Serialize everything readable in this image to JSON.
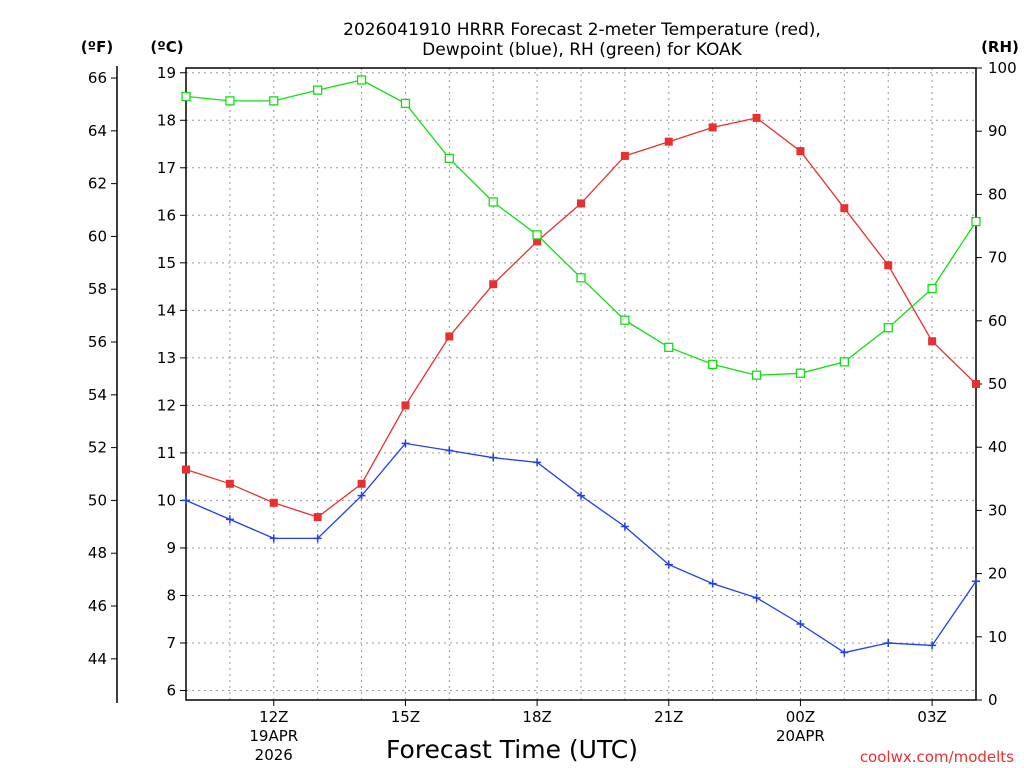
{
  "chart_data": {
    "type": "line",
    "title_lines": [
      "2026041910 HRRR Forecast 2-meter Temperature (red),",
      "Dewpoint (blue), RH (green) for KOAK"
    ],
    "xlabel": "Forecast Time (UTC)",
    "credit": "coolwx.com/modelts",
    "units": {
      "fahrenheit": "(ºF)",
      "celsius": "(ºC)",
      "rh": "(RH)"
    },
    "colors": {
      "temperature": "#e83030",
      "dewpoint": "#2040e8",
      "rh": "#10e010",
      "grid": "#999999",
      "axis": "#000000",
      "credit": "#e83030"
    },
    "x": {
      "range": [
        10,
        28
      ],
      "ticks": [
        12,
        15,
        18,
        21,
        24,
        27
      ],
      "tick_labels": [
        "12Z",
        "15Z",
        "18Z",
        "21Z",
        "00Z",
        "03Z"
      ]
    },
    "date_labels": [
      {
        "x": 12,
        "lines": [
          "19APR",
          "2026"
        ]
      },
      {
        "x": 24,
        "lines": [
          "20APR"
        ]
      }
    ],
    "axes": {
      "celsius": {
        "range": [
          5.8,
          19.1
        ],
        "ticks": [
          6,
          7,
          8,
          9,
          10,
          11,
          12,
          13,
          14,
          15,
          16,
          17,
          18,
          19
        ]
      },
      "fahrenheit": {
        "range": [
          42.44,
          66.38
        ],
        "ticks": [
          44,
          46,
          48,
          50,
          52,
          54,
          56,
          58,
          60,
          62,
          64,
          66
        ]
      },
      "rh": {
        "range": [
          0,
          100
        ],
        "ticks": [
          0,
          10,
          20,
          30,
          40,
          50,
          60,
          70,
          80,
          90,
          100
        ]
      }
    },
    "series": [
      {
        "name": "Temperature",
        "unit": "C",
        "axis": "celsius",
        "marker": "filled-square",
        "color_key": "temperature",
        "x": [
          10,
          11,
          12,
          13,
          14,
          15,
          16,
          17,
          18,
          19,
          20,
          21,
          22,
          23,
          24,
          25,
          26,
          27,
          28
        ],
        "values": [
          10.65,
          10.35,
          9.95,
          9.65,
          10.35,
          12.0,
          13.45,
          14.55,
          15.45,
          16.25,
          17.25,
          17.55,
          17.85,
          18.05,
          17.35,
          16.15,
          14.95,
          13.35,
          12.45
        ]
      },
      {
        "name": "Dewpoint",
        "unit": "C",
        "axis": "celsius",
        "marker": "plus",
        "color_key": "dewpoint",
        "x": [
          10,
          11,
          12,
          13,
          14,
          15,
          16,
          17,
          18,
          19,
          20,
          21,
          22,
          23,
          24,
          25,
          26,
          27,
          28
        ],
        "values": [
          10.0,
          9.6,
          9.2,
          9.2,
          10.1,
          11.2,
          11.05,
          10.9,
          10.8,
          10.1,
          9.45,
          8.65,
          8.25,
          7.95,
          7.4,
          6.8,
          7.0,
          6.95,
          8.3
        ]
      },
      {
        "name": "RH",
        "unit": "%",
        "axis": "rh",
        "marker": "open-square",
        "color_key": "rh",
        "x": [
          10,
          11,
          12,
          13,
          14,
          15,
          16,
          17,
          18,
          19,
          20,
          21,
          22,
          23,
          24,
          25,
          26,
          27,
          28
        ],
        "values": [
          95.5,
          94.8,
          94.8,
          96.5,
          98.1,
          94.4,
          85.7,
          78.8,
          73.6,
          66.8,
          60.1,
          55.8,
          53.1,
          51.4,
          51.7,
          53.5,
          58.9,
          65.1,
          75.7
        ]
      }
    ]
  }
}
